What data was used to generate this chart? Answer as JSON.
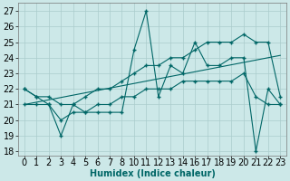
{
  "xlabel": "Humidex (Indice chaleur)",
  "background_color": "#cce8e8",
  "grid_color": "#aacccc",
  "line_color": "#006666",
  "xtick_labels": [
    "0",
    "1",
    "2",
    "3",
    "4",
    "5",
    "6",
    "7",
    "8",
    "10",
    "11",
    "12",
    "13",
    "14",
    "16",
    "17",
    "18",
    "19",
    "20",
    "21",
    "22",
    "23"
  ],
  "y_main": [
    22,
    21.5,
    21,
    19,
    21,
    20.5,
    20.5,
    20.5,
    20.5,
    24.5,
    27,
    21.5,
    23.5,
    23,
    25,
    23.5,
    23.5,
    24,
    24,
    18,
    22,
    21
  ],
  "y_upper": [
    22,
    21.5,
    21.5,
    21,
    21,
    21.5,
    22,
    22,
    22.5,
    23,
    23.5,
    23.5,
    24,
    24,
    24.5,
    25,
    25,
    25,
    25.5,
    25,
    25,
    21.5
  ],
  "y_lower": [
    21,
    21,
    21,
    20,
    20.5,
    20.5,
    21,
    21,
    21.5,
    21.5,
    22,
    22,
    22,
    22.5,
    22.5,
    22.5,
    22.5,
    22.5,
    23,
    21.5,
    21,
    21
  ],
  "y_trend": [
    21.0,
    21.15,
    21.3,
    21.45,
    21.6,
    21.75,
    21.9,
    22.05,
    22.2,
    22.35,
    22.5,
    22.65,
    22.8,
    22.95,
    23.1,
    23.25,
    23.4,
    23.55,
    23.7,
    23.85,
    24.0,
    24.15
  ],
  "ylim": [
    17.7,
    27.5
  ],
  "yticks": [
    18,
    19,
    20,
    21,
    22,
    23,
    24,
    25,
    26,
    27
  ],
  "fontsize_tick": 7,
  "fontsize_label": 7
}
